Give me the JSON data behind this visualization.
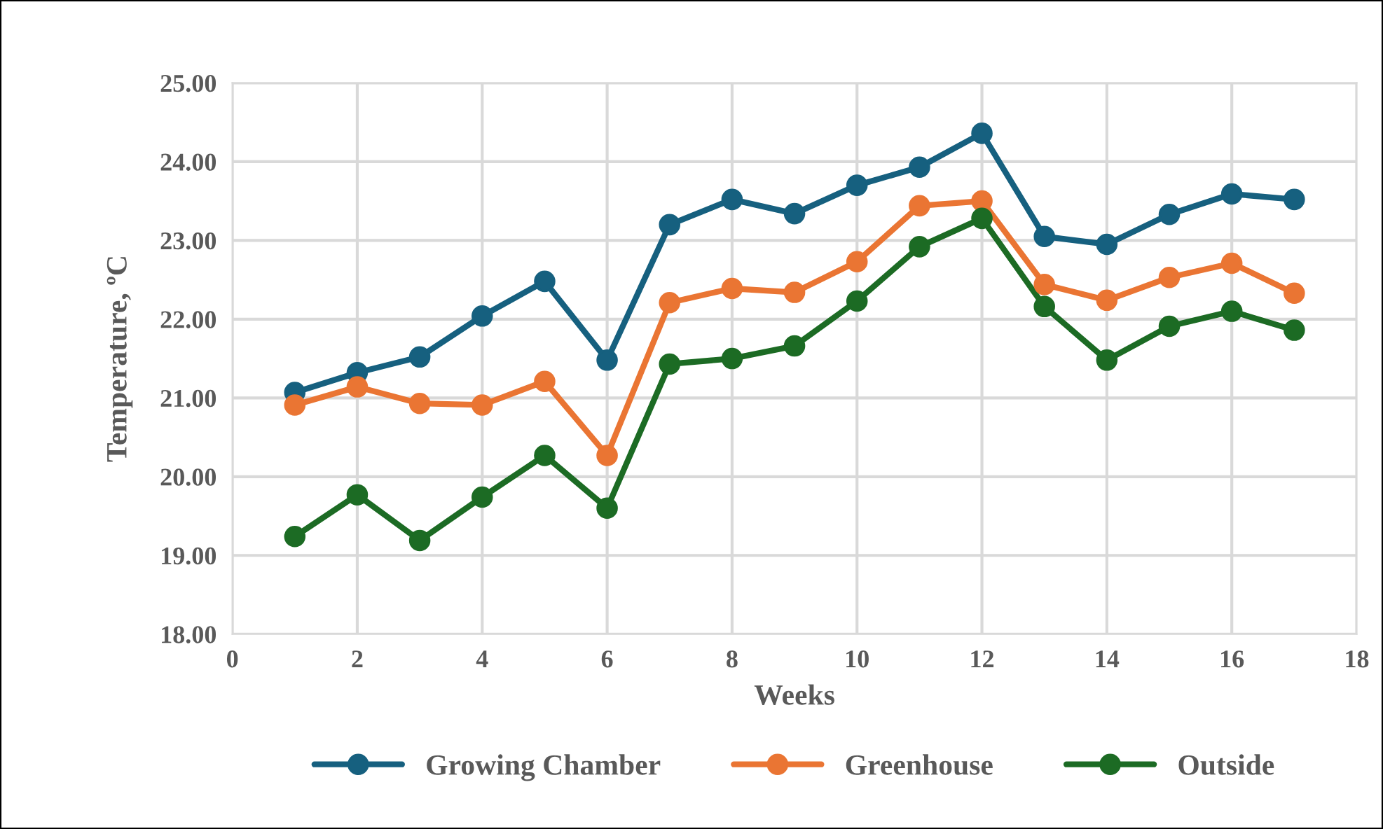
{
  "chart_data": {
    "type": "line",
    "xlabel": "Weeks",
    "ylabel": "Temperature, ºC",
    "x": [
      1,
      2,
      3,
      4,
      5,
      6,
      7,
      8,
      9,
      10,
      11,
      12,
      13,
      14,
      15,
      16,
      17
    ],
    "series": [
      {
        "name": "Growing Chamber",
        "color": "#16607f",
        "values": [
          21.07,
          21.32,
          21.52,
          22.04,
          22.48,
          21.48,
          23.2,
          23.52,
          23.34,
          23.7,
          23.93,
          24.36,
          23.05,
          22.95,
          23.33,
          23.59,
          23.52
        ]
      },
      {
        "name": "Greenhouse",
        "color": "#ea7533",
        "values": [
          20.91,
          21.14,
          20.93,
          20.91,
          21.21,
          20.27,
          22.21,
          22.39,
          22.34,
          22.73,
          23.44,
          23.5,
          22.44,
          22.24,
          22.53,
          22.71,
          22.33
        ]
      },
      {
        "name": "Outside",
        "color": "#1c6b24",
        "values": [
          19.24,
          19.77,
          19.19,
          19.74,
          20.27,
          19.6,
          21.43,
          21.5,
          21.66,
          22.23,
          22.92,
          23.28,
          22.16,
          21.48,
          21.91,
          22.1,
          21.86
        ]
      }
    ],
    "xlim": [
      0,
      18
    ],
    "xticks": [
      0,
      2,
      4,
      6,
      8,
      10,
      12,
      14,
      16,
      18
    ],
    "ylim": [
      18,
      25
    ],
    "yticks": [
      {
        "value": 18,
        "label": "18.00"
      },
      {
        "value": 19,
        "label": "19.00"
      },
      {
        "value": 20,
        "label": "20.00"
      },
      {
        "value": 21,
        "label": "21.00"
      },
      {
        "value": 22,
        "label": "22.00"
      },
      {
        "value": 23,
        "label": "23.00"
      },
      {
        "value": 24,
        "label": "24.00"
      },
      {
        "value": 25,
        "label": "25.00"
      }
    ],
    "grid": true,
    "legend": "bottom",
    "marker": "circle",
    "line_style": "solid"
  }
}
